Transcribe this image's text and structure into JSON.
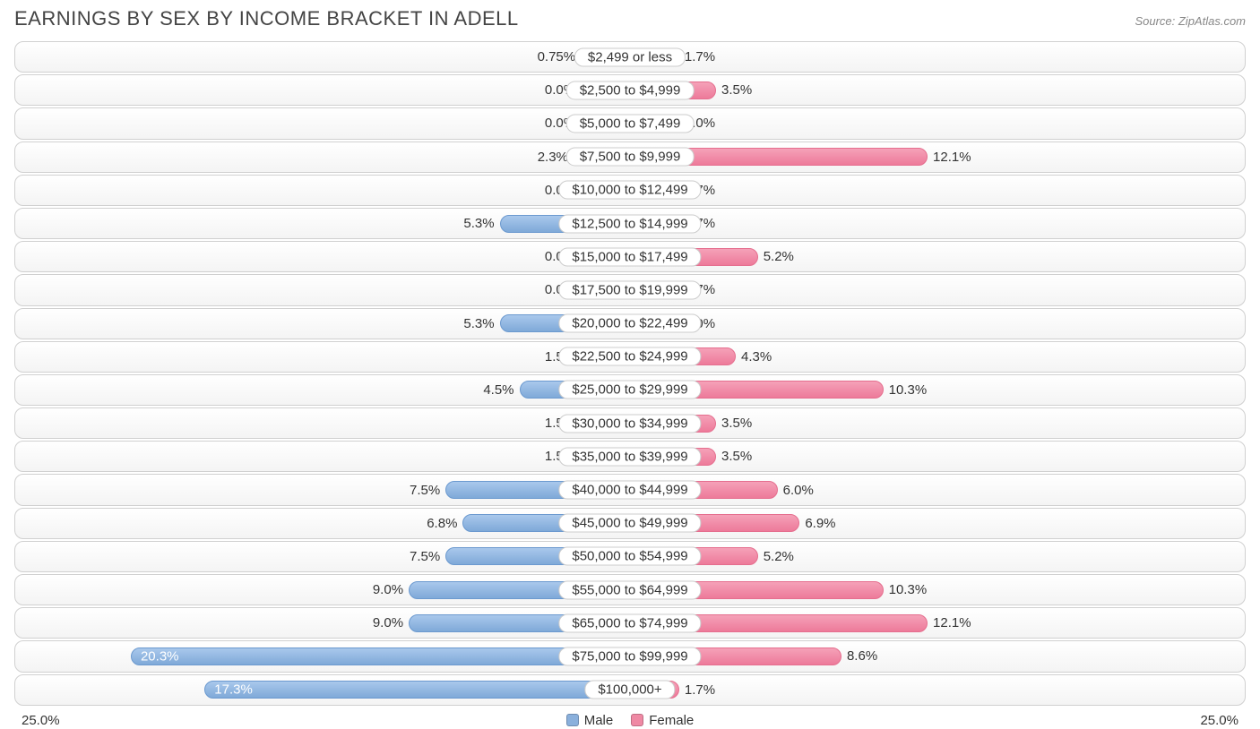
{
  "header": {
    "title": "EARNINGS BY SEX BY INCOME BRACKET IN ADELL",
    "source": "Source: ZipAtlas.com"
  },
  "chart": {
    "type": "diverging-bar",
    "axis_max": 25.0,
    "axis_label_left": "25.0%",
    "axis_label_right": "25.0%",
    "min_bar_pct": 2.0,
    "colors": {
      "male_bar": "#8ab0dc",
      "female_bar": "#ef89a4",
      "track_border": "#d0d0d0",
      "label_border": "#cccccc",
      "text": "#333333",
      "background": "#ffffff"
    },
    "legend": {
      "male": "Male",
      "female": "Female"
    },
    "rows": [
      {
        "category": "$2,499 or less",
        "male": 0.75,
        "male_label": "0.75%",
        "female": 1.7,
        "female_label": "1.7%"
      },
      {
        "category": "$2,500 to $4,999",
        "male": 0.0,
        "male_label": "0.0%",
        "female": 3.5,
        "female_label": "3.5%"
      },
      {
        "category": "$5,000 to $7,499",
        "male": 0.0,
        "male_label": "0.0%",
        "female": 0.0,
        "female_label": "0.0%"
      },
      {
        "category": "$7,500 to $9,999",
        "male": 2.3,
        "male_label": "2.3%",
        "female": 12.1,
        "female_label": "12.1%"
      },
      {
        "category": "$10,000 to $12,499",
        "male": 0.0,
        "male_label": "0.0%",
        "female": 1.7,
        "female_label": "1.7%"
      },
      {
        "category": "$12,500 to $14,999",
        "male": 5.3,
        "male_label": "5.3%",
        "female": 1.7,
        "female_label": "1.7%"
      },
      {
        "category": "$15,000 to $17,499",
        "male": 0.0,
        "male_label": "0.0%",
        "female": 5.2,
        "female_label": "5.2%"
      },
      {
        "category": "$17,500 to $19,999",
        "male": 0.0,
        "male_label": "0.0%",
        "female": 1.7,
        "female_label": "1.7%"
      },
      {
        "category": "$20,000 to $22,499",
        "male": 5.3,
        "male_label": "5.3%",
        "female": 0.0,
        "female_label": "0.0%"
      },
      {
        "category": "$22,500 to $24,999",
        "male": 1.5,
        "male_label": "1.5%",
        "female": 4.3,
        "female_label": "4.3%"
      },
      {
        "category": "$25,000 to $29,999",
        "male": 4.5,
        "male_label": "4.5%",
        "female": 10.3,
        "female_label": "10.3%"
      },
      {
        "category": "$30,000 to $34,999",
        "male": 1.5,
        "male_label": "1.5%",
        "female": 3.5,
        "female_label": "3.5%"
      },
      {
        "category": "$35,000 to $39,999",
        "male": 1.5,
        "male_label": "1.5%",
        "female": 3.5,
        "female_label": "3.5%"
      },
      {
        "category": "$40,000 to $44,999",
        "male": 7.5,
        "male_label": "7.5%",
        "female": 6.0,
        "female_label": "6.0%"
      },
      {
        "category": "$45,000 to $49,999",
        "male": 6.8,
        "male_label": "6.8%",
        "female": 6.9,
        "female_label": "6.9%"
      },
      {
        "category": "$50,000 to $54,999",
        "male": 7.5,
        "male_label": "7.5%",
        "female": 5.2,
        "female_label": "5.2%"
      },
      {
        "category": "$55,000 to $64,999",
        "male": 9.0,
        "male_label": "9.0%",
        "female": 10.3,
        "female_label": "10.3%"
      },
      {
        "category": "$65,000 to $74,999",
        "male": 9.0,
        "male_label": "9.0%",
        "female": 12.1,
        "female_label": "12.1%"
      },
      {
        "category": "$75,000 to $99,999",
        "male": 20.3,
        "male_label": "20.3%",
        "female": 8.6,
        "female_label": "8.6%"
      },
      {
        "category": "$100,000+",
        "male": 17.3,
        "male_label": "17.3%",
        "female": 1.7,
        "female_label": "1.7%"
      }
    ]
  }
}
